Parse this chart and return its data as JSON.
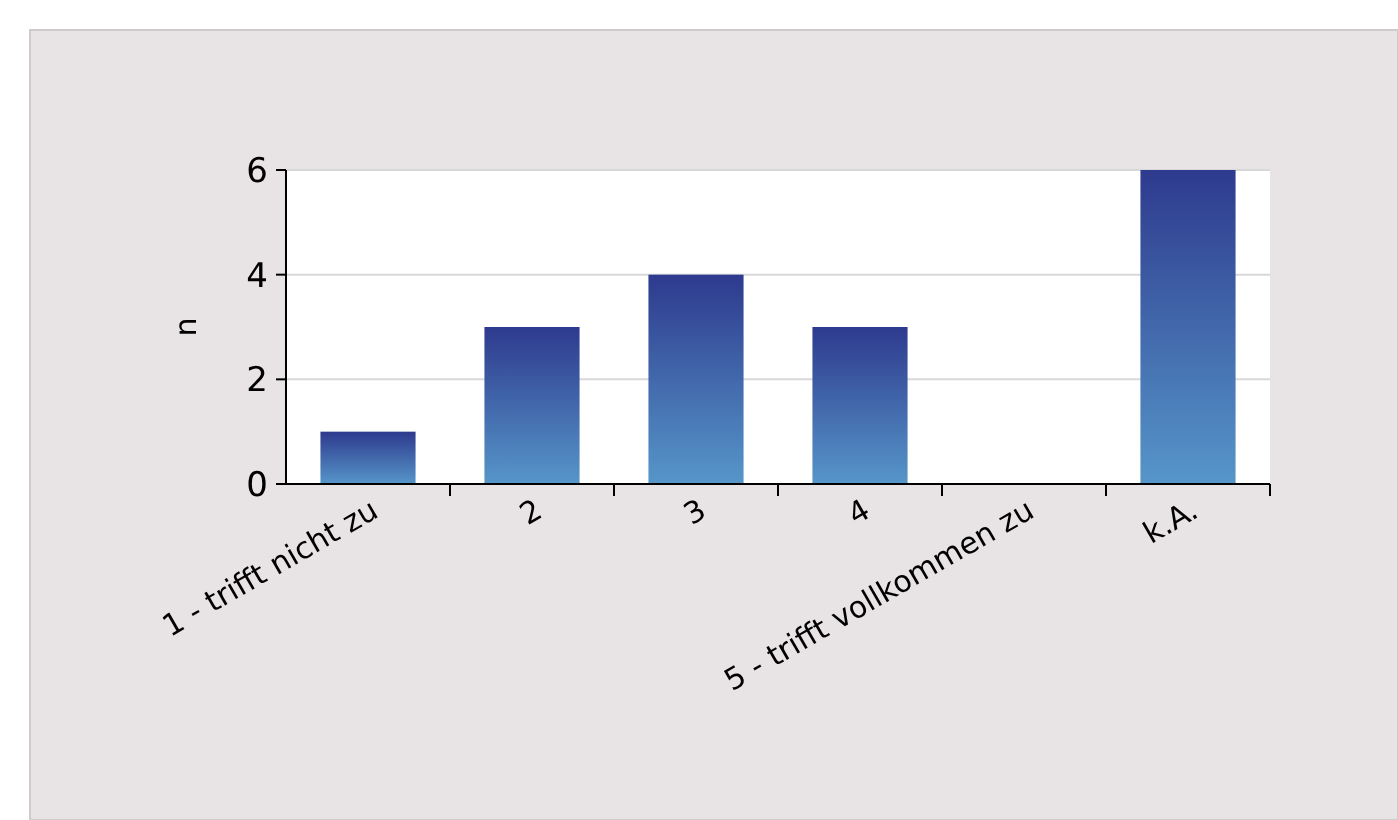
{
  "chart_data": {
    "type": "bar",
    "ylabel": "n",
    "categories": [
      "1 - trifft nicht zu",
      "2",
      "3",
      "4",
      "5 - trifft vollkommen zu",
      "k.A."
    ],
    "values": [
      1,
      3,
      4,
      3,
      0,
      6
    ],
    "color": "#2e3a8e",
    "ylim": [
      0,
      6
    ],
    "yticks": [
      0,
      2,
      4,
      6
    ],
    "grid": "y"
  }
}
